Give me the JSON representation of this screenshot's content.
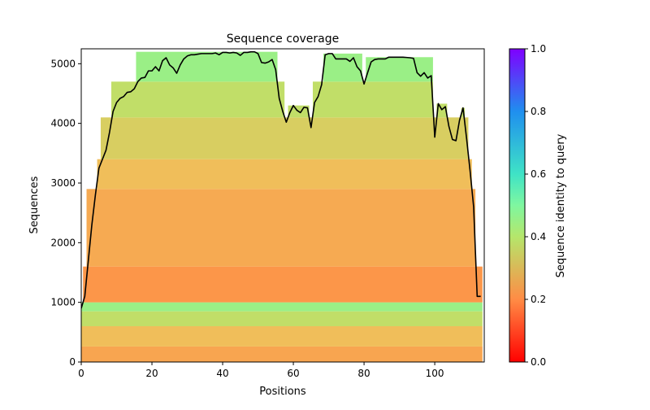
{
  "chart_data": {
    "type": "heatmap",
    "title": "Sequence coverage",
    "xlabel": "Positions",
    "ylabel": "Sequences",
    "xlim": [
      0,
      114
    ],
    "ylim": [
      0,
      5250
    ],
    "xticks": [
      0,
      20,
      40,
      60,
      80,
      100
    ],
    "yticks": [
      0,
      1000,
      2000,
      3000,
      4000,
      5000
    ],
    "colorbar": {
      "label": "Sequence identity to query",
      "range": [
        0,
        1
      ],
      "ticks": [
        "0.0",
        "0.2",
        "0.4",
        "0.6",
        "0.8",
        "1.0"
      ],
      "colormap": "rainbow_r"
    },
    "grid": false,
    "identity_bands": [
      {
        "y_range": [
          0,
          260
        ],
        "identity": 0.25
      },
      {
        "y_range": [
          260,
          600
        ],
        "identity": 0.3
      },
      {
        "y_range": [
          600,
          850
        ],
        "identity": 0.38
      },
      {
        "y_range": [
          850,
          1000
        ],
        "identity": 0.45
      },
      {
        "y_range": [
          1000,
          1600
        ],
        "identity": 0.22
      },
      {
        "y_range": [
          1600,
          2900
        ],
        "identity": 0.26
      },
      {
        "y_range": [
          2900,
          3400
        ],
        "identity": 0.3
      },
      {
        "y_range": [
          3400,
          4100
        ],
        "identity": 0.34
      },
      {
        "y_range": [
          4100,
          4700
        ],
        "identity": 0.38
      },
      {
        "y_range": [
          4700,
          5200
        ],
        "identity": 0.45
      }
    ],
    "coverage_line": {
      "color": "#000000",
      "x": [
        0,
        1,
        2,
        3,
        4,
        5,
        6,
        7,
        8,
        9,
        10,
        11,
        12,
        13,
        14,
        15,
        16,
        17,
        18,
        19,
        20,
        21,
        22,
        23,
        24,
        25,
        26,
        27,
        28,
        29,
        30,
        31,
        32,
        33,
        34,
        35,
        36,
        37,
        38,
        39,
        40,
        41,
        42,
        43,
        44,
        45,
        46,
        47,
        48,
        49,
        50,
        51,
        52,
        53,
        54,
        55,
        56,
        57,
        58,
        59,
        60,
        61,
        62,
        63,
        64,
        65,
        66,
        67,
        68,
        69,
        70,
        71,
        72,
        73,
        74,
        75,
        76,
        77,
        78,
        79,
        80,
        81,
        82,
        83,
        84,
        85,
        86,
        87,
        88,
        89,
        90,
        91,
        92,
        93,
        94,
        95,
        96,
        97,
        98,
        99,
        100,
        101,
        102,
        103,
        104,
        105,
        106,
        107,
        108,
        109,
        110,
        111,
        112,
        113
      ],
      "y": [
        900,
        1100,
        1700,
        2300,
        2800,
        3250,
        3400,
        3550,
        3850,
        4200,
        4350,
        4420,
        4450,
        4520,
        4530,
        4580,
        4700,
        4760,
        4770,
        4880,
        4880,
        4950,
        4880,
        5050,
        5100,
        4980,
        4930,
        4840,
        4980,
        5080,
        5130,
        5150,
        5150,
        5160,
        5170,
        5170,
        5170,
        5170,
        5180,
        5150,
        5190,
        5190,
        5180,
        5190,
        5180,
        5140,
        5190,
        5190,
        5200,
        5200,
        5170,
        5020,
        5010,
        5030,
        5070,
        4900,
        4420,
        4200,
        4020,
        4180,
        4300,
        4220,
        4180,
        4270,
        4260,
        3930,
        4350,
        4450,
        4650,
        5150,
        5170,
        5170,
        5080,
        5080,
        5080,
        5080,
        5040,
        5100,
        4950,
        4880,
        4660,
        4850,
        5030,
        5070,
        5080,
        5080,
        5080,
        5110,
        5110,
        5110,
        5110,
        5110,
        5105,
        5100,
        5090,
        4850,
        4790,
        4850,
        4760,
        4800,
        3770,
        4330,
        4230,
        4280,
        3950,
        3730,
        3710,
        4050,
        4260,
        3750,
        3200,
        2600,
        1100,
        1100
      ]
    }
  }
}
